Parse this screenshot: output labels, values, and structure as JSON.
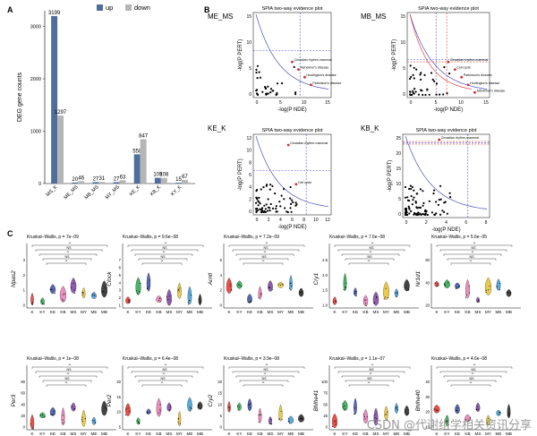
{
  "panels": {
    "a": "A",
    "b": "B",
    "c": "C"
  },
  "chart_a": {
    "type": "bar",
    "ylabel": "DEG gene counts",
    "legend": [
      "up",
      "down"
    ],
    "colors": {
      "up": "#4e6f9c",
      "down": "#b5b5b5"
    },
    "categories": [
      "MS_K",
      "ME_MS",
      "MB_MS",
      "MY_MS",
      "KE_K",
      "KB_K",
      "KY_K"
    ],
    "series": [
      {
        "name": "up",
        "values": [
          3199,
          20,
          27,
          27,
          558,
          109,
          15
        ]
      },
      {
        "name": "down",
        "values": [
          1297,
          46,
          31,
          63,
          847,
          108,
          67
        ]
      }
    ],
    "ylim": [
      0,
      3300
    ],
    "yticks": [
      "0",
      "1000",
      "2000",
      "3000"
    ]
  },
  "chart_b": [
    {
      "label": "ME_MS",
      "title": "SPIA two-way evidence plot",
      "xlabel": "-log(P NDE)",
      "ylabel": "-log(P PERT)",
      "xticks": [
        "0",
        "5",
        "10",
        "15"
      ],
      "yticks": [
        "0",
        "5",
        "10",
        "15"
      ],
      "annotations": [
        "Circadian rhythm-mammal",
        "Alzheimer's disease",
        "Huntington's disease",
        "Parkinson's disease"
      ]
    },
    {
      "label": "MB_MS",
      "title": "SPIA two-way evidence plot",
      "xlabel": "-log(P NDE)",
      "ylabel": "-log(P PERT)",
      "xticks": [
        "0",
        "5",
        "10",
        "15"
      ],
      "yticks": [
        "0",
        "5",
        "10",
        "15"
      ],
      "annotations": [
        "Circadian rhythm-mammal",
        "Cell cycle",
        "Parkinson's disease",
        "Huntington's disease",
        "Alzheimer's disease"
      ]
    },
    {
      "label": "KE_K",
      "title": "SPIA two-way evidence plot",
      "xlabel": "-log(P NDE)",
      "ylabel": "-log(P PERT)",
      "xticks": [
        "0",
        "2",
        "4",
        "6",
        "8",
        "10",
        "12"
      ],
      "yticks": [
        "0",
        "2",
        "4",
        "6",
        "8",
        "10",
        "12"
      ],
      "annotations": [
        "Circadian rhythm-mammal",
        "Cell cycle"
      ]
    },
    {
      "label": "KB_K",
      "title": "SPIA two-way evidence plot",
      "xlabel": "-log(P NDE)",
      "ylabel": "-log(P PERT)",
      "xticks": [
        "0",
        "2",
        "4",
        "6",
        "8"
      ],
      "yticks": [
        "0",
        "5",
        "10",
        "15",
        "20",
        "25"
      ],
      "annotations": [
        "Circadian rhythm-mammal"
      ]
    }
  ],
  "chart_c": {
    "type": "violin",
    "groups": [
      "K",
      "KY",
      "KE",
      "KB",
      "MS",
      "MY",
      "ME",
      "MB"
    ],
    "colors": [
      "#e8312c",
      "#27a64a",
      "#3b4ea3",
      "#e67bb3",
      "#7b3fa0",
      "#e8c22a",
      "#3c9bd6",
      "#222222"
    ],
    "ns": "NS",
    "genes": [
      {
        "gene": "Npas2",
        "stat": "Kruskal–Wallis, p = 7e−09",
        "yticks": [
          "0",
          "1",
          "2",
          "3"
        ]
      },
      {
        "gene": "Clock",
        "stat": "Kruskal–Wallis, p = 9.6e−08",
        "yticks": [
          "1",
          "2",
          "3",
          "4",
          "5",
          "6",
          "7"
        ]
      },
      {
        "gene": "Arntl",
        "stat": "Kruskal–Wallis, p = 7.2e−09",
        "yticks": [
          "0",
          "2",
          "4",
          "6"
        ]
      },
      {
        "gene": "Cry1",
        "stat": "Kruskal–Wallis, p = 7.6e−08",
        "yticks": [
          "1.0",
          "1.5",
          "2.0",
          "2.5"
        ]
      },
      {
        "gene": "Nr1d1",
        "stat": "Kruskal–Wallis, p = 5.6e−05",
        "yticks": [
          "20",
          "40",
          "60"
        ]
      },
      {
        "gene": "Per3",
        "stat": "Kruskal–Wallis, p = 1e−08",
        "yticks": [
          "0",
          "20",
          "40",
          "60",
          "80"
        ]
      },
      {
        "gene": "Per2",
        "stat": "Kruskal–Wallis, p = 6.4e−08",
        "yticks": [
          "5",
          "10",
          "15",
          "20"
        ]
      },
      {
        "gene": "Cry2",
        "stat": "Kruskal–Wallis, p = 3.9e−08",
        "yticks": [
          "0",
          "5",
          "10",
          "15",
          "20"
        ]
      },
      {
        "gene": "Bhlhe41",
        "stat": "Kruskal–Wallis, p = 1.1e−07",
        "yticks": [
          "0",
          "25",
          "50",
          "75",
          "100"
        ]
      },
      {
        "gene": "Bhlhe40",
        "stat": "Kruskal–Wallis, p = 4.6e−08",
        "yticks": [
          "10",
          "20",
          "30",
          "40"
        ]
      }
    ]
  },
  "watermark": "CSDN @代谢组学相关资讯分享"
}
